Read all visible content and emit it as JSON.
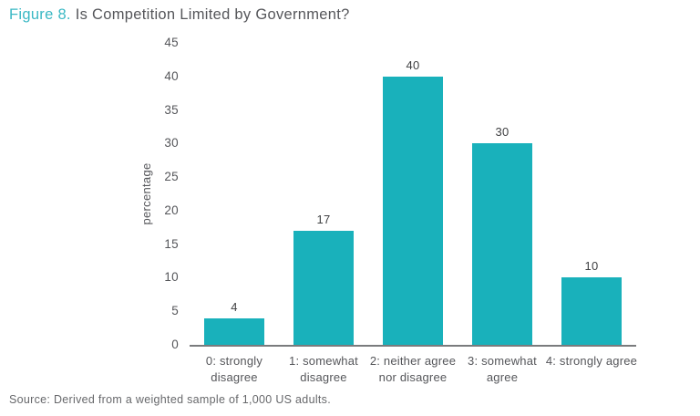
{
  "title": {
    "figure_label": "Figure 8.",
    "text": " Is Competition Limited by Government?"
  },
  "source": "Source: Derived from a weighted sample of 1,000 US adults.",
  "colors": {
    "bar_teal": "#19b1bb",
    "title_accent": "#3ab8c4",
    "text_gray": "#55565a",
    "value_label": "#3f4042",
    "axis_line": "#7a7b7d",
    "source_gray": "#67686b"
  },
  "chart_data": {
    "type": "bar",
    "title": "Figure 8. Is Competition Limited by Government?",
    "categories": [
      "0: strongly\ndisagree",
      "1: somewhat\ndisagree",
      "2: neither agree\nnor disagree",
      "3: somewhat\nagree",
      "4: strongly agree"
    ],
    "values": [
      4,
      17,
      40,
      30,
      10
    ],
    "value_labels": [
      "4",
      "17",
      "40",
      "30",
      "10"
    ],
    "xlabel": "",
    "ylabel": "percentage",
    "ylim": [
      0,
      45
    ],
    "ytick_step": 5,
    "yticks": [
      0,
      5,
      10,
      15,
      20,
      25,
      30,
      35,
      40,
      45
    ],
    "grid": false,
    "legend": "none",
    "bar_color": "#19b1bb"
  }
}
